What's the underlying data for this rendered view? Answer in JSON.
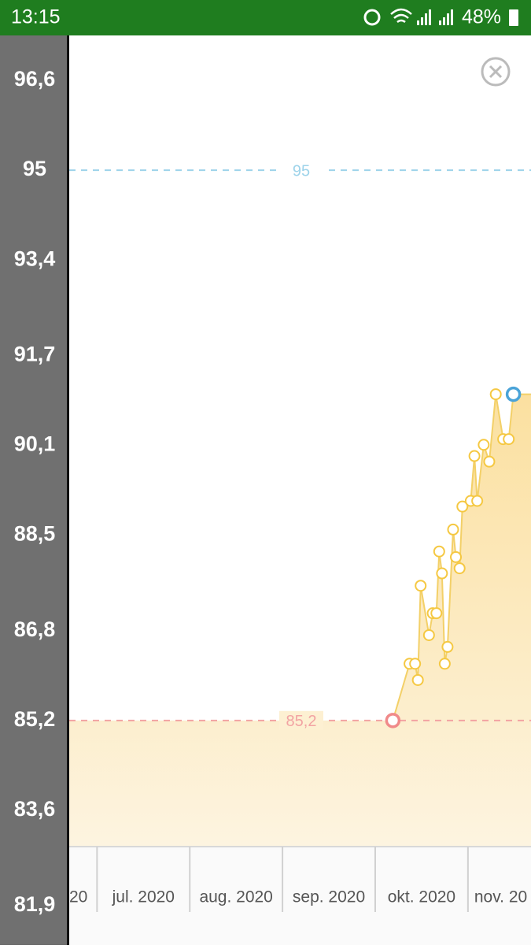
{
  "status_bar": {
    "time": "13:15",
    "battery": "48%"
  },
  "chart_data": {
    "type": "area-line",
    "x": [
      10.19,
      10.37,
      10.43,
      10.46,
      10.49,
      10.58,
      10.62,
      10.66,
      10.69,
      10.72,
      10.75,
      10.78,
      10.84,
      10.87,
      10.91,
      10.94,
      11.03,
      11.07,
      11.1,
      11.17,
      11.23,
      11.3,
      11.38,
      11.44,
      11.49
    ],
    "values": [
      85.2,
      86.21,
      86.21,
      85.92,
      87.6,
      86.72,
      87.11,
      87.11,
      88.21,
      87.82,
      86.21,
      86.51,
      88.6,
      88.11,
      87.91,
      89.01,
      89.11,
      89.91,
      89.11,
      90.11,
      89.81,
      91.01,
      90.21,
      90.21,
      91.01
    ],
    "color": "#f3d068",
    "marker_color": "#f5c842",
    "first_marker_color": "#f08a8a",
    "last_marker_color": "#4aa3d8",
    "xlim": [
      6.7,
      11.68
    ],
    "xticks": [
      {
        "value": 6,
        "label": "20"
      },
      {
        "value": 7,
        "label": "jul. 2020"
      },
      {
        "value": 8,
        "label": "aug. 2020"
      },
      {
        "value": 9,
        "label": "sep. 2020"
      },
      {
        "value": 10,
        "label": "okt. 2020"
      },
      {
        "value": 11,
        "label": "nov. 20"
      }
    ],
    "ylim": [
      81.2,
      97.4
    ],
    "yticks": [
      {
        "value": 96.6,
        "label": "96,6"
      },
      95,
      {
        "value": 93.4,
        "label": "93,4"
      },
      {
        "value": 91.7,
        "label": "91,7"
      },
      {
        "value": 90.1,
        "label": "90,1"
      },
      {
        "value": 88.5,
        "label": "88,5"
      },
      {
        "value": 86.8,
        "label": "86,8"
      },
      {
        "value": 85.2,
        "label": "85,2"
      },
      {
        "value": 83.6,
        "label": "83,6"
      },
      {
        "value": 81.9,
        "label": "81,9"
      }
    ],
    "reference_lines": [
      {
        "value": 95,
        "color": "#9dd3ea"
      },
      {
        "value": 85.2,
        "label": "85,2",
        "color": "#f2a3a3"
      }
    ]
  }
}
